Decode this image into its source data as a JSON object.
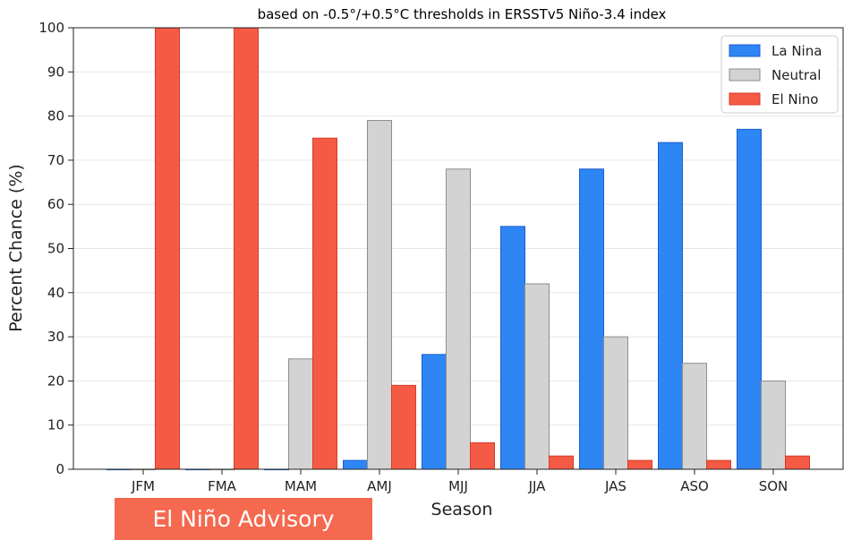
{
  "chart_data": {
    "type": "bar",
    "title": "based on -0.5°/+0.5°C thresholds in ERSSTv5 Niño-3.4 index",
    "xlabel": "Season",
    "ylabel": "Percent Chance (%)",
    "ylim": [
      0,
      100
    ],
    "yticks": [
      "0",
      "10",
      "20",
      "30",
      "40",
      "50",
      "60",
      "70",
      "80",
      "90",
      "100"
    ],
    "grid": true,
    "legend_position": "top-right",
    "categories": [
      "JFM",
      "FMA",
      "MAM",
      "AMJ",
      "MJJ",
      "JJA",
      "JAS",
      "ASO",
      "SON"
    ],
    "series": [
      {
        "name": "La Nina",
        "color": "#2e86f5",
        "values": [
          0,
          0,
          0,
          2,
          26,
          55,
          68,
          74,
          77
        ]
      },
      {
        "name": "Neutral",
        "color": "#d3d3d3",
        "values": [
          0,
          0,
          25,
          79,
          68,
          42,
          30,
          24,
          20
        ]
      },
      {
        "name": "El Nino",
        "color": "#f45a44",
        "values": [
          100,
          100,
          75,
          19,
          6,
          3,
          2,
          2,
          3
        ]
      }
    ]
  },
  "banner": {
    "text": "El Niño Advisory"
  }
}
